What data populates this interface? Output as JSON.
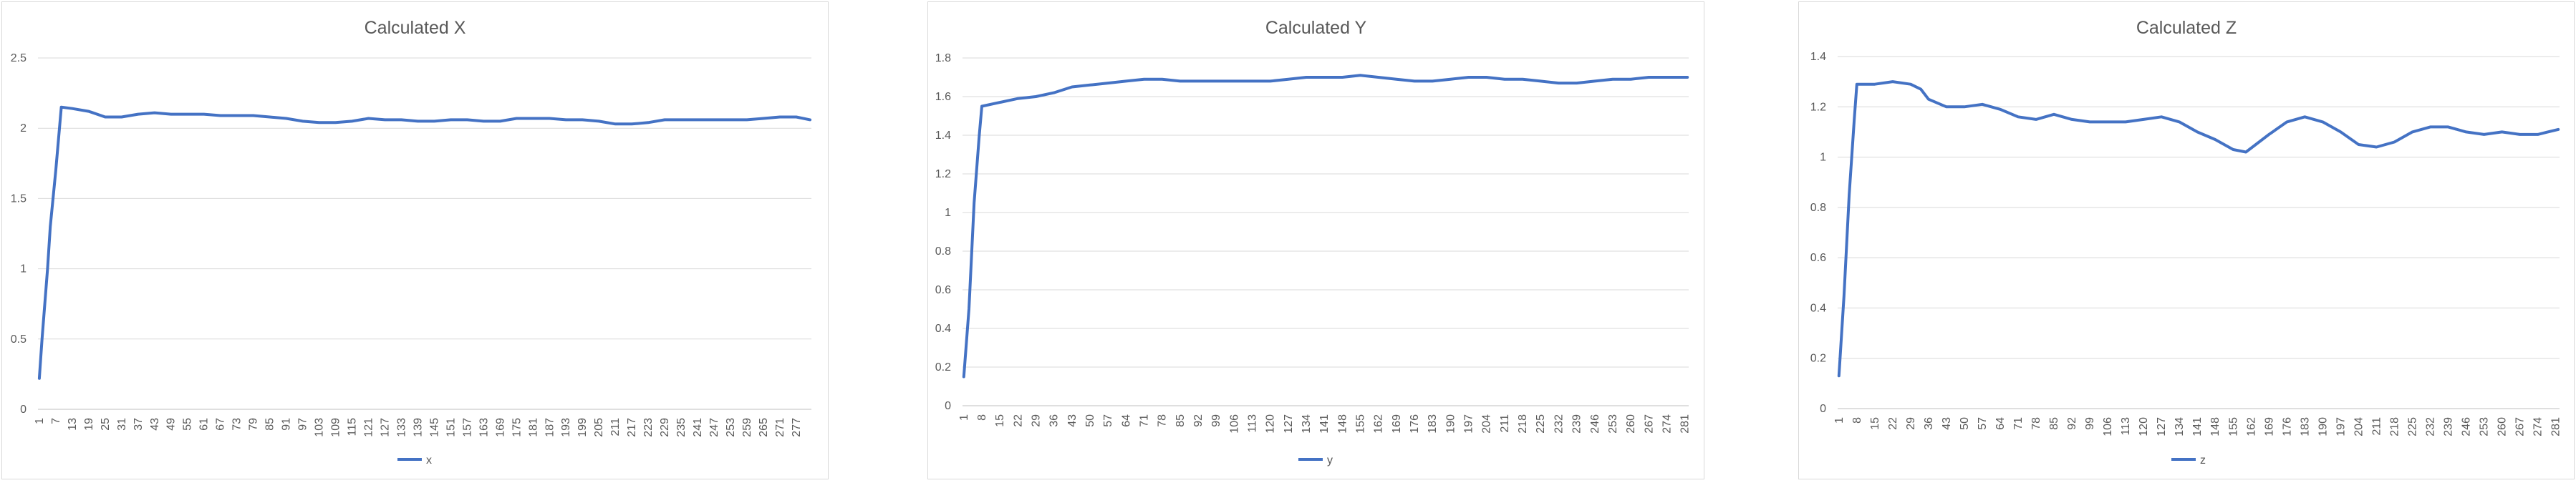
{
  "chart_data": [
    {
      "type": "line",
      "title": "Calculated X",
      "xlabel": "",
      "ylabel": "",
      "ylim": [
        0,
        2.5
      ],
      "yticks": [
        "0",
        "0.5",
        "1",
        "1.5",
        "2",
        "2.5"
      ],
      "x": {
        "start": 1,
        "end": 282,
        "label_step": 6
      },
      "grid": true,
      "legend": "bottom",
      "series": [
        {
          "name": "x",
          "color": "#4472C4",
          "points": [
            [
              1,
              0.22
            ],
            [
              2,
              0.5
            ],
            [
              4,
              1.0
            ],
            [
              5,
              1.3
            ],
            [
              7,
              1.7
            ],
            [
              9,
              2.15
            ],
            [
              13,
              2.14
            ],
            [
              19,
              2.12
            ],
            [
              25,
              2.08
            ],
            [
              31,
              2.08
            ],
            [
              37,
              2.1
            ],
            [
              43,
              2.11
            ],
            [
              49,
              2.1
            ],
            [
              55,
              2.1
            ],
            [
              61,
              2.1
            ],
            [
              67,
              2.09
            ],
            [
              73,
              2.09
            ],
            [
              79,
              2.09
            ],
            [
              85,
              2.08
            ],
            [
              91,
              2.07
            ],
            [
              97,
              2.05
            ],
            [
              103,
              2.04
            ],
            [
              109,
              2.04
            ],
            [
              115,
              2.05
            ],
            [
              121,
              2.07
            ],
            [
              127,
              2.06
            ],
            [
              133,
              2.06
            ],
            [
              139,
              2.05
            ],
            [
              145,
              2.05
            ],
            [
              151,
              2.06
            ],
            [
              157,
              2.06
            ],
            [
              163,
              2.05
            ],
            [
              169,
              2.05
            ],
            [
              175,
              2.07
            ],
            [
              181,
              2.07
            ],
            [
              187,
              2.07
            ],
            [
              193,
              2.06
            ],
            [
              199,
              2.06
            ],
            [
              205,
              2.05
            ],
            [
              211,
              2.03
            ],
            [
              217,
              2.03
            ],
            [
              223,
              2.04
            ],
            [
              229,
              2.06
            ],
            [
              235,
              2.06
            ],
            [
              241,
              2.06
            ],
            [
              247,
              2.06
            ],
            [
              253,
              2.06
            ],
            [
              259,
              2.06
            ],
            [
              265,
              2.07
            ],
            [
              271,
              2.08
            ],
            [
              277,
              2.08
            ],
            [
              282,
              2.06
            ]
          ]
        }
      ]
    },
    {
      "type": "line",
      "title": "Calculated Y",
      "xlabel": "",
      "ylabel": "",
      "ylim": [
        0,
        1.8
      ],
      "yticks": [
        "0",
        "0.2",
        "0.4",
        "0.6",
        "0.8",
        "1",
        "1.2",
        "1.4",
        "1.6",
        "1.8"
      ],
      "x": {
        "start": 1,
        "end": 282,
        "label_step": 7
      },
      "grid": true,
      "legend": "bottom",
      "series": [
        {
          "name": "y",
          "color": "#4472C4",
          "points": [
            [
              1,
              0.15
            ],
            [
              3,
              0.5
            ],
            [
              5,
              1.05
            ],
            [
              7,
              1.4
            ],
            [
              8,
              1.55
            ],
            [
              15,
              1.57
            ],
            [
              22,
              1.59
            ],
            [
              29,
              1.6
            ],
            [
              36,
              1.62
            ],
            [
              43,
              1.65
            ],
            [
              50,
              1.66
            ],
            [
              57,
              1.67
            ],
            [
              64,
              1.68
            ],
            [
              71,
              1.69
            ],
            [
              78,
              1.69
            ],
            [
              85,
              1.68
            ],
            [
              92,
              1.68
            ],
            [
              99,
              1.68
            ],
            [
              106,
              1.68
            ],
            [
              113,
              1.68
            ],
            [
              120,
              1.68
            ],
            [
              127,
              1.69
            ],
            [
              134,
              1.7
            ],
            [
              141,
              1.7
            ],
            [
              148,
              1.7
            ],
            [
              155,
              1.71
            ],
            [
              162,
              1.7
            ],
            [
              169,
              1.69
            ],
            [
              176,
              1.68
            ],
            [
              183,
              1.68
            ],
            [
              190,
              1.69
            ],
            [
              197,
              1.7
            ],
            [
              204,
              1.7
            ],
            [
              211,
              1.69
            ],
            [
              218,
              1.69
            ],
            [
              225,
              1.68
            ],
            [
              232,
              1.67
            ],
            [
              239,
              1.67
            ],
            [
              246,
              1.68
            ],
            [
              253,
              1.69
            ],
            [
              260,
              1.69
            ],
            [
              267,
              1.7
            ],
            [
              274,
              1.7
            ],
            [
              282,
              1.7
            ]
          ]
        }
      ]
    },
    {
      "type": "line",
      "title": "Calculated Z",
      "xlabel": "",
      "ylabel": "",
      "ylim": [
        0,
        1.4
      ],
      "yticks": [
        "0",
        "0.2",
        "0.4",
        "0.6",
        "0.8",
        "1",
        "1.2",
        "1.4"
      ],
      "x": {
        "start": 1,
        "end": 282,
        "label_step": 7
      },
      "grid": true,
      "legend": "bottom",
      "series": [
        {
          "name": "z",
          "color": "#4472C4",
          "points": [
            [
              1,
              0.13
            ],
            [
              3,
              0.45
            ],
            [
              5,
              0.85
            ],
            [
              7,
              1.15
            ],
            [
              8,
              1.29
            ],
            [
              15,
              1.29
            ],
            [
              22,
              1.3
            ],
            [
              29,
              1.29
            ],
            [
              33,
              1.27
            ],
            [
              36,
              1.23
            ],
            [
              43,
              1.2
            ],
            [
              50,
              1.2
            ],
            [
              57,
              1.21
            ],
            [
              64,
              1.19
            ],
            [
              71,
              1.16
            ],
            [
              78,
              1.15
            ],
            [
              85,
              1.17
            ],
            [
              92,
              1.15
            ],
            [
              99,
              1.14
            ],
            [
              106,
              1.14
            ],
            [
              113,
              1.14
            ],
            [
              120,
              1.15
            ],
            [
              127,
              1.16
            ],
            [
              134,
              1.14
            ],
            [
              141,
              1.1
            ],
            [
              148,
              1.07
            ],
            [
              155,
              1.03
            ],
            [
              160,
              1.02
            ],
            [
              169,
              1.09
            ],
            [
              176,
              1.14
            ],
            [
              183,
              1.16
            ],
            [
              190,
              1.14
            ],
            [
              197,
              1.1
            ],
            [
              204,
              1.05
            ],
            [
              211,
              1.04
            ],
            [
              218,
              1.06
            ],
            [
              225,
              1.1
            ],
            [
              232,
              1.12
            ],
            [
              239,
              1.12
            ],
            [
              246,
              1.1
            ],
            [
              253,
              1.09
            ],
            [
              260,
              1.1
            ],
            [
              267,
              1.09
            ],
            [
              274,
              1.09
            ],
            [
              282,
              1.11
            ]
          ]
        }
      ]
    }
  ]
}
